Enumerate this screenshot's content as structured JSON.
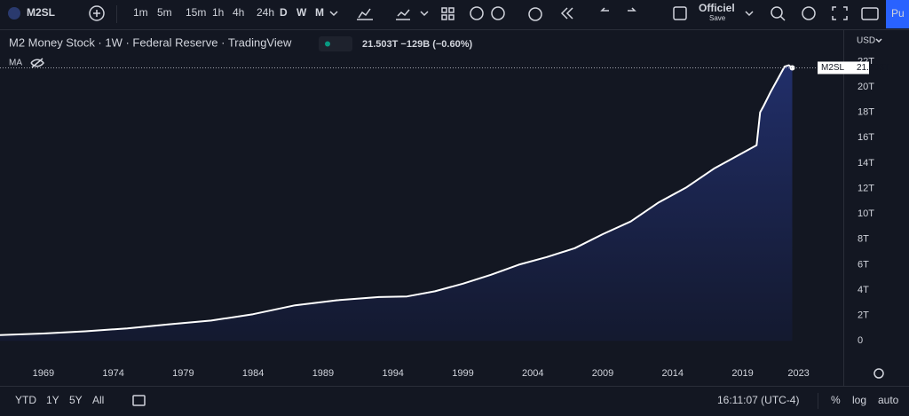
{
  "toolbar": {
    "symbol": "M2SL",
    "intervals": [
      "1m",
      "5m",
      "15m",
      "1h",
      "4h",
      "24h",
      "D",
      "W",
      "M"
    ],
    "layout_name": "Officiel",
    "layout_status": "Save",
    "publish": "Pu"
  },
  "legend": {
    "title": "M2 Money Stock · 1W · Federal Reserve · TradingView",
    "value_text": "21.503T −129B (−0.60%)",
    "indicator": "MA"
  },
  "chart_data": {
    "type": "area",
    "currency": "USD",
    "x": [
      1965.9,
      1969,
      1972,
      1975,
      1978,
      1981,
      1984,
      1987,
      1990,
      1993,
      1995,
      1997,
      1999,
      2001,
      2003,
      2005,
      2007,
      2009,
      2011,
      2013,
      2015,
      2017,
      2019,
      2020.0,
      2020.25,
      2020.5,
      2021,
      2021.5,
      2022.0,
      2022.3,
      2022.55
    ],
    "series": [
      {
        "name": "M2SL",
        "color": "#ffffff",
        "values": [
          0.46,
          0.58,
          0.75,
          0.98,
          1.3,
          1.6,
          2.1,
          2.8,
          3.2,
          3.45,
          3.5,
          3.9,
          4.5,
          5.2,
          6.0,
          6.6,
          7.3,
          8.4,
          9.4,
          10.9,
          12.1,
          13.6,
          14.8,
          15.4,
          18.0,
          18.5,
          19.6,
          20.6,
          21.6,
          21.7,
          21.503
        ]
      }
    ],
    "last_value": {
      "value": 21.503,
      "label": "21.503T"
    },
    "xlim": [
      1965.9,
      2026.2
    ],
    "ylim": [
      -1.1,
      24.4
    ],
    "xticks": [
      1969,
      1974,
      1979,
      1984,
      1989,
      1994,
      1999,
      2004,
      2009,
      2014,
      2019,
      2023
    ],
    "yticks": [
      0,
      {
        "value": 2,
        "label": "2T"
      },
      {
        "value": 4,
        "label": "4T"
      },
      {
        "value": 6,
        "label": "6T"
      },
      {
        "value": 8,
        "label": "8T"
      },
      {
        "value": 10,
        "label": "10T"
      },
      {
        "value": 12,
        "label": "12T"
      },
      {
        "value": 14,
        "label": "14T"
      },
      {
        "value": 16,
        "label": "16T"
      },
      {
        "value": 18,
        "label": "18T"
      },
      {
        "value": 20,
        "label": "20T"
      },
      {
        "value": 22,
        "label": "22T"
      }
    ],
    "log_scale": false,
    "grid": false
  },
  "bottom_bar": {
    "ranges": [
      "YTD",
      "1Y",
      "5Y",
      "All"
    ],
    "time": "16:11:07 (UTC-4)",
    "options": [
      "%",
      "log",
      "auto"
    ]
  }
}
